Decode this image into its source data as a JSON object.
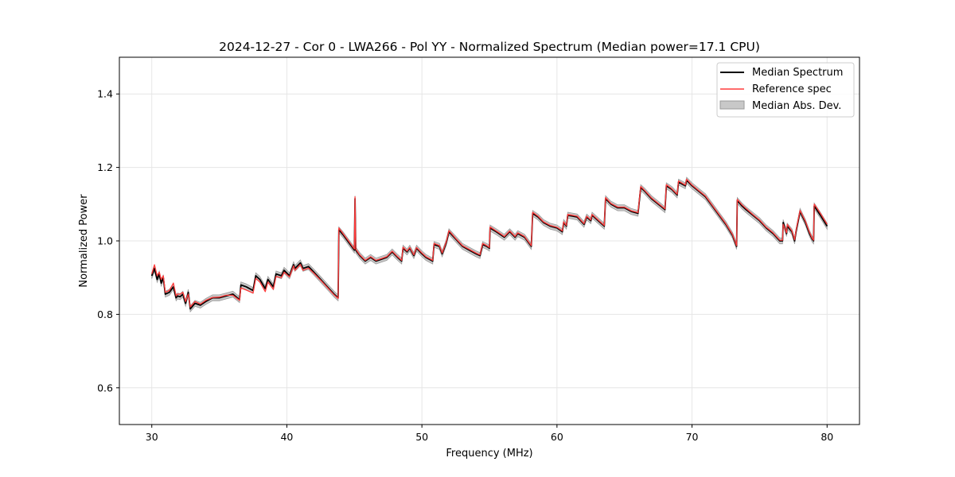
{
  "chart_data": {
    "type": "line",
    "title": "2024-12-27 - Cor 0 - LWA266 - Pol YY - Normalized Spectrum (Median power=17.1 CPU)",
    "xlabel": "Frequency (MHz)",
    "ylabel": "Normalized Power",
    "xlim": [
      27.6,
      82.4
    ],
    "ylim": [
      0.5,
      1.5
    ],
    "xticks": [
      30,
      40,
      50,
      60,
      70,
      80
    ],
    "yticks": [
      0.6,
      0.8,
      1.0,
      1.2,
      1.4
    ],
    "xtick_labels": [
      "30",
      "40",
      "50",
      "60",
      "70",
      "80"
    ],
    "ytick_labels": [
      "0.6",
      "0.8",
      "1.0",
      "1.2",
      "1.4"
    ],
    "grid": true,
    "legend_position": "top-right",
    "legend": [
      "Median Spectrum",
      "Reference spec",
      "Median Abs. Dev."
    ],
    "colors": {
      "median": "#000000",
      "reference": "#ff3b3b",
      "mad_fill": "#c8c8c8",
      "mad_edge": "#9a9a9a",
      "grid": "#e6e6e6"
    },
    "mad_halfwidth": 0.008,
    "series": [
      {
        "name": "Median Spectrum",
        "x": [
          30.0,
          30.2,
          30.4,
          30.55,
          30.7,
          30.85,
          31.0,
          31.3,
          31.6,
          31.8,
          31.9,
          32.1,
          32.3,
          32.5,
          32.7,
          32.85,
          33.2,
          33.6,
          34.0,
          34.5,
          35.0,
          35.5,
          36.0,
          36.5,
          36.6,
          37.0,
          37.5,
          37.7,
          38.0,
          38.4,
          38.6,
          39.0,
          39.2,
          39.6,
          39.8,
          40.2,
          40.5,
          40.6,
          41.0,
          41.2,
          41.6,
          42.0,
          42.5,
          43.0,
          43.5,
          43.8,
          43.85,
          44.2,
          44.6,
          45.0,
          45.05,
          45.1,
          45.4,
          45.8,
          46.2,
          46.6,
          47.0,
          47.4,
          47.8,
          48.2,
          48.5,
          48.6,
          48.9,
          49.1,
          49.4,
          49.6,
          50.0,
          50.3,
          50.8,
          50.9,
          51.3,
          51.5,
          51.8,
          52.0,
          52.5,
          53.0,
          53.5,
          54.0,
          54.3,
          54.5,
          54.8,
          55.0,
          55.05,
          55.5,
          55.9,
          56.1,
          56.5,
          56.9,
          57.1,
          57.6,
          58.1,
          58.2,
          58.6,
          59.0,
          59.5,
          60.0,
          60.4,
          60.5,
          60.7,
          60.8,
          61.5,
          62.0,
          62.2,
          62.5,
          62.6,
          63.2,
          63.5,
          63.6,
          64.0,
          64.5,
          65.0,
          65.5,
          66.0,
          66.2,
          66.5,
          67.0,
          67.5,
          68.0,
          68.1,
          68.5,
          68.9,
          69.0,
          69.5,
          69.6,
          70.0,
          70.5,
          71.0,
          71.5,
          72.0,
          72.5,
          73.0,
          73.3,
          73.35,
          73.7,
          74.0,
          74.5,
          75.0,
          75.5,
          76.0,
          76.5,
          76.7,
          76.75,
          77.0,
          77.05,
          77.4,
          77.6,
          77.7,
          78.0,
          78.4,
          78.7,
          78.9,
          79.0,
          79.05,
          79.5,
          80.0
        ],
        "y": [
          0.905,
          0.925,
          0.895,
          0.91,
          0.885,
          0.9,
          0.855,
          0.86,
          0.875,
          0.845,
          0.85,
          0.848,
          0.855,
          0.83,
          0.86,
          0.815,
          0.83,
          0.825,
          0.835,
          0.845,
          0.845,
          0.85,
          0.855,
          0.84,
          0.88,
          0.875,
          0.865,
          0.905,
          0.895,
          0.87,
          0.895,
          0.875,
          0.91,
          0.905,
          0.92,
          0.905,
          0.935,
          0.925,
          0.94,
          0.925,
          0.93,
          0.915,
          0.895,
          0.875,
          0.855,
          0.845,
          1.03,
          1.015,
          0.995,
          0.975,
          1.115,
          0.975,
          0.96,
          0.945,
          0.955,
          0.945,
          0.95,
          0.955,
          0.97,
          0.955,
          0.945,
          0.98,
          0.97,
          0.98,
          0.96,
          0.98,
          0.965,
          0.955,
          0.945,
          0.99,
          0.985,
          0.965,
          0.995,
          1.025,
          1.005,
          0.985,
          0.975,
          0.965,
          0.96,
          0.99,
          0.985,
          0.98,
          1.035,
          1.025,
          1.015,
          1.01,
          1.025,
          1.01,
          1.02,
          1.01,
          0.985,
          1.075,
          1.065,
          1.05,
          1.04,
          1.035,
          1.025,
          1.05,
          1.04,
          1.07,
          1.065,
          1.045,
          1.065,
          1.055,
          1.07,
          1.05,
          1.04,
          1.115,
          1.1,
          1.09,
          1.09,
          1.08,
          1.075,
          1.145,
          1.135,
          1.115,
          1.1,
          1.085,
          1.15,
          1.14,
          1.125,
          1.16,
          1.15,
          1.165,
          1.15,
          1.135,
          1.12,
          1.095,
          1.07,
          1.045,
          1.015,
          0.985,
          1.11,
          1.095,
          1.085,
          1.07,
          1.055,
          1.035,
          1.02,
          1.0,
          1.0,
          1.05,
          1.02,
          1.04,
          1.025,
          1.0,
          1.025,
          1.08,
          1.05,
          1.02,
          1.005,
          1.0,
          1.095,
          1.07,
          1.04
        ]
      },
      {
        "name": "Reference spec",
        "x": [
          30.0,
          30.2,
          30.4,
          30.55,
          30.7,
          30.85,
          31.0,
          31.3,
          31.6,
          31.8,
          31.9,
          32.1,
          32.3,
          32.5,
          32.7,
          32.85,
          33.2,
          33.6,
          34.0,
          34.5,
          35.0,
          35.5,
          36.0,
          36.5,
          36.6,
          37.0,
          37.5,
          37.7,
          38.0,
          38.4,
          38.6,
          39.0,
          39.2,
          39.6,
          39.8,
          40.2,
          40.5,
          40.6,
          41.0,
          41.2,
          41.6,
          42.0,
          42.5,
          43.0,
          43.5,
          43.8,
          43.85,
          44.2,
          44.6,
          45.0,
          45.05,
          45.1,
          45.4,
          45.8,
          46.2,
          46.6,
          47.0,
          47.4,
          47.8,
          48.2,
          48.5,
          48.6,
          48.9,
          49.1,
          49.4,
          49.6,
          50.0,
          50.3,
          50.8,
          50.9,
          51.3,
          51.5,
          51.8,
          52.0,
          52.5,
          53.0,
          53.5,
          54.0,
          54.3,
          54.5,
          54.8,
          55.0,
          55.05,
          55.5,
          55.9,
          56.1,
          56.5,
          56.9,
          57.1,
          57.6,
          58.1,
          58.2,
          58.6,
          59.0,
          59.5,
          60.0,
          60.4,
          60.5,
          60.7,
          60.8,
          61.5,
          62.0,
          62.2,
          62.5,
          62.6,
          63.2,
          63.5,
          63.6,
          64.0,
          64.5,
          65.0,
          65.5,
          66.0,
          66.2,
          66.5,
          67.0,
          67.5,
          68.0,
          68.1,
          68.5,
          68.9,
          69.0,
          69.5,
          69.6,
          70.0,
          70.5,
          71.0,
          71.5,
          72.0,
          72.5,
          73.0,
          73.3,
          73.35,
          73.7,
          74.0,
          74.5,
          75.0,
          75.5,
          76.0,
          76.5,
          76.7,
          76.75,
          77.0,
          77.05,
          77.4,
          77.6,
          77.7,
          78.0,
          78.4,
          78.7,
          78.9,
          79.0,
          79.05,
          79.5,
          80.0
        ],
        "y": [
          0.91,
          0.935,
          0.905,
          0.915,
          0.895,
          0.905,
          0.86,
          0.865,
          0.885,
          0.85,
          0.855,
          0.855,
          0.86,
          0.835,
          0.855,
          0.82,
          0.835,
          0.828,
          0.838,
          0.846,
          0.847,
          0.852,
          0.852,
          0.838,
          0.872,
          0.866,
          0.858,
          0.898,
          0.888,
          0.862,
          0.888,
          0.868,
          0.903,
          0.9,
          0.915,
          0.902,
          0.932,
          0.92,
          0.936,
          0.92,
          0.926,
          0.912,
          0.893,
          0.873,
          0.853,
          0.843,
          1.035,
          1.018,
          0.998,
          0.978,
          1.12,
          0.978,
          0.962,
          0.947,
          0.957,
          0.947,
          0.952,
          0.957,
          0.972,
          0.957,
          0.947,
          0.983,
          0.972,
          0.982,
          0.962,
          0.982,
          0.967,
          0.957,
          0.947,
          0.993,
          0.987,
          0.967,
          0.997,
          1.028,
          1.007,
          0.987,
          0.977,
          0.967,
          0.962,
          0.993,
          0.987,
          0.982,
          1.038,
          1.027,
          1.017,
          1.012,
          1.027,
          1.012,
          1.022,
          1.012,
          0.987,
          1.078,
          1.067,
          1.052,
          1.042,
          1.037,
          1.027,
          1.052,
          1.042,
          1.072,
          1.067,
          1.047,
          1.067,
          1.057,
          1.072,
          1.052,
          1.042,
          1.118,
          1.102,
          1.092,
          1.092,
          1.082,
          1.077,
          1.148,
          1.137,
          1.117,
          1.102,
          1.087,
          1.153,
          1.142,
          1.127,
          1.163,
          1.152,
          1.168,
          1.152,
          1.137,
          1.122,
          1.097,
          1.072,
          1.047,
          1.017,
          0.987,
          1.113,
          1.098,
          1.088,
          1.072,
          1.057,
          1.037,
          1.022,
          1.002,
          1.002,
          1.045,
          1.022,
          1.045,
          1.027,
          1.003,
          1.028,
          1.083,
          1.053,
          1.023,
          1.007,
          1.002,
          1.1,
          1.075,
          1.045
        ]
      }
    ]
  }
}
